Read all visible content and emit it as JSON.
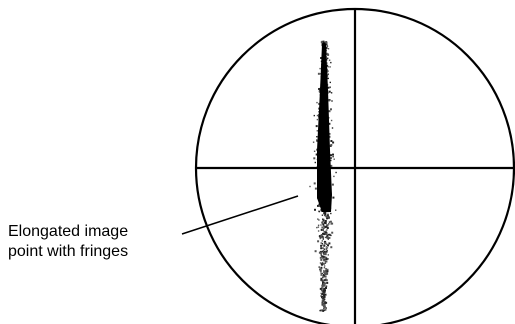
{
  "annotation": {
    "line1": "Elongated image",
    "line2": "point with fringes"
  },
  "colors": {
    "ink": "#000000",
    "background": "#ffffff",
    "fringe_dots": "#555555"
  }
}
